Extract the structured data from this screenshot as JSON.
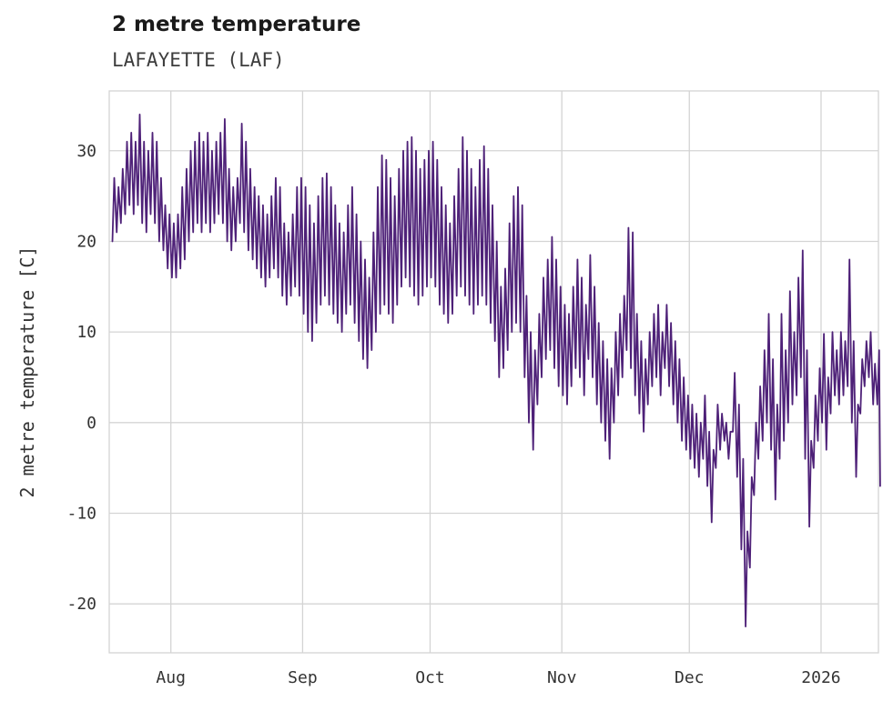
{
  "header": {
    "title": "2 metre temperature",
    "subtitle": "LAFAYETTE (LAF)"
  },
  "chart_data": {
    "type": "line",
    "title": "2 metre temperature",
    "subtitle": "LAFAYETTE (LAF)",
    "series_name": "2 metre temperature",
    "units": "C",
    "ylabel": "2 metre temperature [C]",
    "xlabel": "",
    "grid": true,
    "legend": "none",
    "line_color": "#4e2178",
    "grid_color": "#d4d4d4",
    "text_color": "#333333",
    "ylim": [
      -25.4,
      36.6
    ],
    "xlim": [
      -0.5,
      180.5
    ],
    "yticks": [
      -20,
      -10,
      0,
      10,
      20,
      30
    ],
    "xticks": [
      {
        "label": "Aug",
        "day": 14
      },
      {
        "label": "Sep",
        "day": 45
      },
      {
        "label": "Oct",
        "day": 75
      },
      {
        "label": "Nov",
        "day": 106
      },
      {
        "label": "Dec",
        "day": 136
      },
      {
        "label": "2026",
        "day": 167
      }
    ],
    "x_unit": "day_index_from_series_start",
    "daily": {
      "min": [
        20,
        21,
        22,
        23,
        24,
        23,
        24,
        22,
        21,
        23,
        22,
        20,
        19,
        17,
        16,
        16,
        17,
        18,
        20,
        21,
        22,
        21,
        22,
        21,
        22,
        23,
        22,
        20,
        19,
        20,
        22,
        21,
        19,
        18,
        17,
        16,
        15,
        16,
        17,
        16,
        14,
        13,
        14,
        15,
        14,
        12,
        10,
        9,
        11,
        13,
        14,
        13,
        12,
        11,
        10,
        12,
        13,
        11,
        9,
        7,
        6,
        8,
        10,
        12,
        13,
        12,
        11,
        13,
        15,
        16,
        15,
        14,
        13,
        14,
        15,
        16,
        15,
        13,
        12,
        11,
        12,
        14,
        15,
        14,
        13,
        12,
        13,
        14,
        13,
        11,
        9,
        5,
        6,
        8,
        10,
        11,
        10,
        5,
        0,
        -3,
        2,
        5,
        7,
        8,
        6,
        4,
        3,
        2,
        4,
        6,
        5,
        3,
        7,
        5,
        2,
        0,
        -2,
        -4,
        0,
        3,
        5,
        8,
        6,
        3,
        1,
        -1,
        2,
        4,
        5,
        3,
        6,
        4,
        2,
        0,
        -2,
        -3,
        -4,
        -5,
        -6,
        -4,
        -7,
        -11,
        -5,
        -3,
        -2,
        -4,
        -1,
        -6,
        -14,
        -22.5,
        -16,
        -8,
        -4,
        -2,
        0,
        -3,
        -8.5,
        -4,
        -2,
        0,
        2,
        3,
        5,
        -4,
        -11.5,
        -5,
        -2,
        0,
        -3,
        1,
        3,
        2,
        3,
        4,
        0,
        -6,
        1,
        4,
        5,
        2,
        2
      ],
      "max": [
        27,
        26,
        28,
        31,
        32,
        31,
        34,
        31,
        30,
        32,
        31,
        27,
        24,
        23,
        22,
        23,
        26,
        28,
        30,
        31,
        32,
        31,
        32,
        30,
        31,
        32,
        33.5,
        28,
        26,
        27,
        33,
        31,
        28,
        26,
        25,
        24,
        23,
        25,
        27,
        26,
        22,
        21,
        23,
        26,
        27,
        26,
        24,
        22,
        25,
        27,
        27.5,
        26,
        24,
        22,
        21,
        24,
        26,
        23,
        20,
        18,
        16,
        21,
        26,
        29.5,
        29,
        27,
        25,
        28,
        30,
        31,
        31.5,
        30,
        28,
        29,
        30,
        31,
        29,
        26,
        24,
        22,
        25,
        28,
        31.5,
        30,
        28,
        26,
        29,
        30.5,
        28,
        24,
        20,
        15,
        17,
        22,
        25,
        26,
        24,
        14,
        10,
        8,
        12,
        16,
        18,
        20.5,
        18,
        15,
        13,
        12,
        15,
        18,
        16,
        13,
        18.5,
        15,
        11,
        9,
        7,
        6,
        10,
        12,
        14,
        21.5,
        21,
        12,
        9,
        7,
        10,
        12,
        13,
        10,
        13,
        11,
        9,
        7,
        5,
        3,
        2,
        1,
        0,
        3,
        -1,
        -3,
        2,
        1,
        0,
        -1,
        5.5,
        2,
        -4,
        -12,
        -6,
        0,
        4,
        8,
        12,
        7,
        2,
        12,
        8,
        14.5,
        10,
        16,
        19,
        8,
        -2,
        3,
        6,
        9.8,
        5,
        10,
        8,
        10,
        9,
        18,
        9,
        2,
        7,
        9,
        10,
        6.5,
        8
      ]
    },
    "final_value": -7
  }
}
